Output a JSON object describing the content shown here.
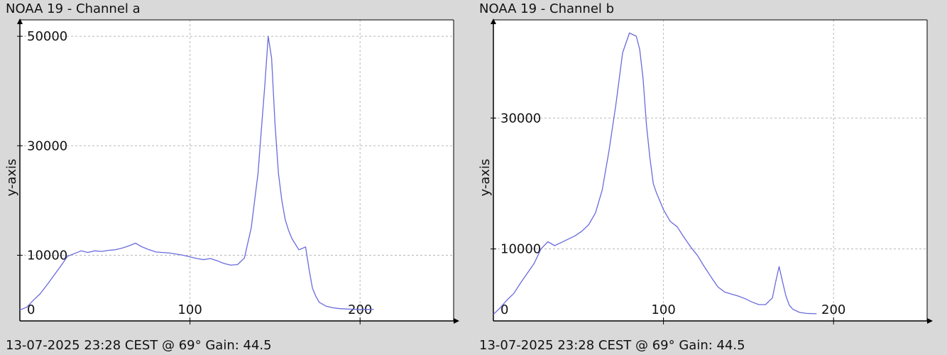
{
  "panels": [
    {
      "title": "NOAA 19 - Channel a",
      "footer": "13-07-2025 23:28 CEST @ 69° Gain: 44.5"
    },
    {
      "title": "NOAA 19 - Channel b",
      "footer": "13-07-2025 23:28 CEST @ 69° Gain: 44.5"
    }
  ],
  "colors": {
    "line": "#6a6add",
    "axis": "#000000",
    "grid": "#b8b8b8",
    "plot_bg": "#ffffff",
    "page_bg": "#d9d9d9"
  },
  "chart_data": [
    {
      "type": "line",
      "title": "NOAA 19 - Channel a",
      "xlabel": "",
      "ylabel": "y-axis",
      "xlim": [
        0,
        255
      ],
      "ylim": [
        -2000,
        53000
      ],
      "xticks": [
        0,
        100,
        200
      ],
      "yticks": [
        10000,
        30000,
        50000
      ],
      "grid": true,
      "series": [
        {
          "x": [
            0,
            4,
            8,
            12,
            16,
            20,
            24,
            28,
            32,
            36,
            40,
            44,
            48,
            52,
            56,
            60,
            64,
            68,
            72,
            76,
            80,
            84,
            88,
            92,
            96,
            100,
            104,
            108,
            112,
            116,
            120,
            124,
            128,
            132,
            136,
            140,
            142,
            144,
            146,
            148,
            150,
            152,
            154,
            156,
            158,
            160,
            164,
            168,
            170,
            172,
            174,
            176,
            180,
            184,
            188,
            192,
            196,
            200,
            204,
            208
          ],
          "y": [
            0,
            500,
            1800,
            3000,
            4600,
            6300,
            8000,
            9800,
            10300,
            10800,
            10500,
            10800,
            10700,
            10900,
            11000,
            11300,
            11700,
            12200,
            11500,
            11000,
            10600,
            10500,
            10400,
            10200,
            10000,
            9700,
            9400,
            9200,
            9400,
            9000,
            8500,
            8200,
            8300,
            9500,
            15000,
            25000,
            33000,
            41000,
            50000,
            46000,
            34000,
            25000,
            20000,
            16500,
            14500,
            13000,
            11000,
            11500,
            7500,
            4000,
            2500,
            1400,
            700,
            400,
            250,
            180,
            130,
            100,
            100,
            100
          ]
        }
      ]
    },
    {
      "type": "line",
      "title": "NOAA 19 - Channel b",
      "xlabel": "",
      "ylabel": "y-axis",
      "xlim": [
        0,
        255
      ],
      "ylim": [
        -1000,
        45000
      ],
      "xticks": [
        0,
        100,
        200
      ],
      "yticks": [
        10000,
        30000
      ],
      "grid": true,
      "series": [
        {
          "x": [
            0,
            4,
            8,
            12,
            16,
            20,
            24,
            28,
            32,
            36,
            40,
            44,
            48,
            52,
            56,
            60,
            64,
            68,
            72,
            76,
            80,
            84,
            86,
            88,
            90,
            92,
            94,
            96,
            100,
            104,
            108,
            112,
            116,
            120,
            124,
            128,
            132,
            136,
            140,
            144,
            148,
            152,
            156,
            160,
            164,
            166,
            168,
            170,
            172,
            174,
            176,
            180,
            184,
            190
          ],
          "y": [
            0,
            1000,
            2200,
            3200,
            4800,
            6300,
            7800,
            10000,
            11100,
            10500,
            11000,
            11500,
            12000,
            12700,
            13700,
            15500,
            19000,
            25000,
            32000,
            40000,
            43000,
            42500,
            40500,
            36000,
            29000,
            24000,
            20000,
            18500,
            16000,
            14200,
            13400,
            11800,
            10300,
            9000,
            7300,
            5700,
            4200,
            3400,
            3100,
            2800,
            2400,
            1900,
            1500,
            1500,
            2500,
            5000,
            7300,
            5000,
            2800,
            1400,
            800,
            300,
            150,
            100
          ]
        }
      ]
    }
  ]
}
